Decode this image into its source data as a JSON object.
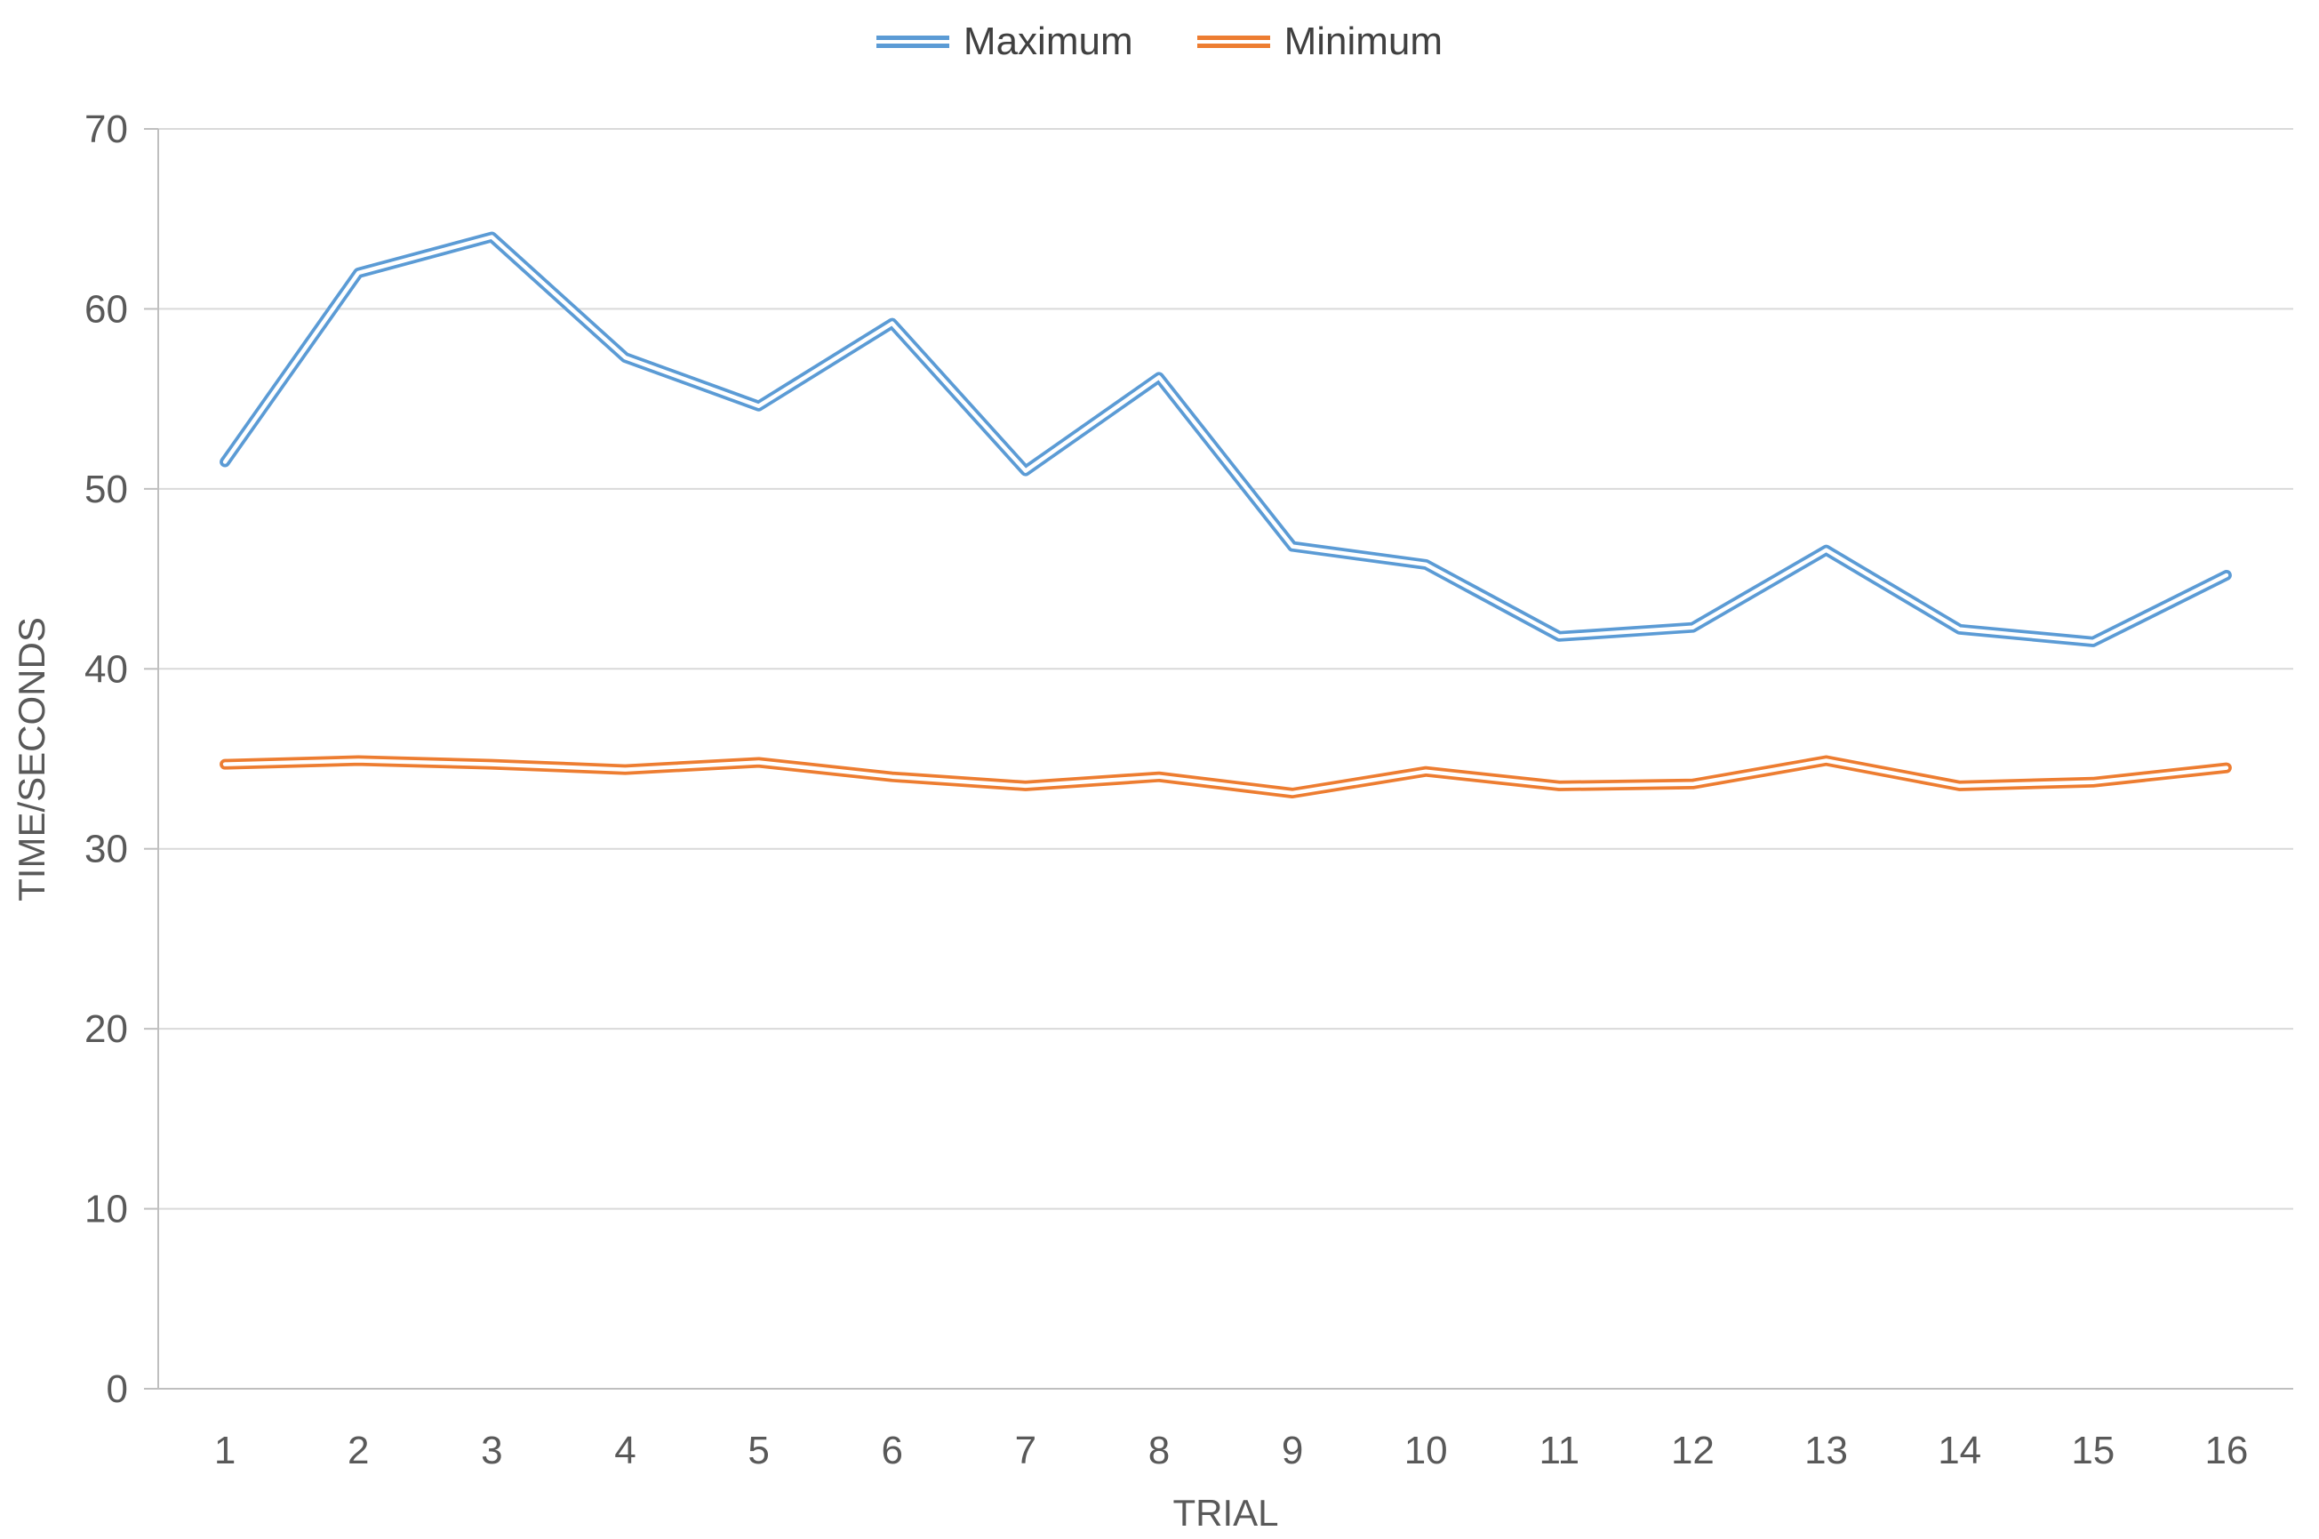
{
  "chart_data": {
    "type": "line",
    "x": [
      "1",
      "2",
      "3",
      "4",
      "5",
      "6",
      "7",
      "8",
      "9",
      "10",
      "11",
      "12",
      "13",
      "14",
      "15",
      "16"
    ],
    "series": [
      {
        "name": "Maximum",
        "color": "#5B9BD5",
        "values": [
          51.5,
          62,
          64,
          57.3,
          54.6,
          59.2,
          51,
          56.2,
          46.8,
          45.8,
          41.8,
          42.3,
          46.6,
          42.2,
          41.5,
          45.2
        ]
      },
      {
        "name": "Minimum",
        "color": "#ED7D31",
        "values": [
          34.7,
          34.9,
          34.7,
          34.4,
          34.8,
          34,
          33.5,
          34,
          33.1,
          34.3,
          33.5,
          33.6,
          34.9,
          33.5,
          33.7,
          34.5
        ]
      }
    ],
    "title": "",
    "xlabel": "TRIAL",
    "ylabel": "TIME/SECONDS",
    "ylim": [
      0,
      70
    ],
    "yticks": [
      0,
      10,
      20,
      30,
      40,
      50,
      60,
      70
    ],
    "grid": true,
    "legend_position": "top",
    "grid_color": "#D9D9D9",
    "axis_color": "#BFBFBF",
    "text_color": "#595959"
  }
}
